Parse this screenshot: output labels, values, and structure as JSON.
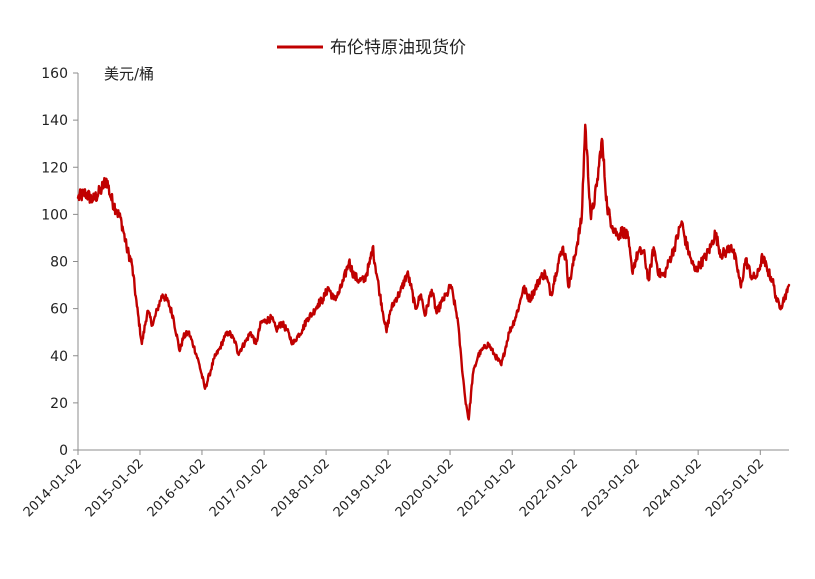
{
  "chart_data": {
    "type": "line",
    "title": "",
    "ylabel": "美元/桶",
    "xlabel": "",
    "ylim": [
      0,
      160
    ],
    "yticks": [
      0,
      20,
      40,
      60,
      80,
      100,
      120,
      140,
      160
    ],
    "xtick_labels": [
      "2014-01-02",
      "2015-01-02",
      "2016-01-02",
      "2017-01-02",
      "2018-01-02",
      "2019-01-02",
      "2020-01-02",
      "2021-01-02",
      "2022-01-02",
      "2023-01-02",
      "2024-01-02",
      "2025-01-02"
    ],
    "xlim": [
      "2014-01-02",
      "2025-06-20"
    ],
    "grid": false,
    "legend_position": "top-center",
    "series": [
      {
        "name": "布伦特原油现货价",
        "color": "#c00000",
        "points": [
          [
            "2014-01-02",
            107
          ],
          [
            "2014-02-15",
            109
          ],
          [
            "2014-03-31",
            106
          ],
          [
            "2014-05-15",
            110
          ],
          [
            "2014-06-19",
            115
          ],
          [
            "2014-07-15",
            107
          ],
          [
            "2014-08-15",
            102
          ],
          [
            "2014-09-15",
            97
          ],
          [
            "2014-10-15",
            86
          ],
          [
            "2014-11-15",
            79
          ],
          [
            "2014-12-15",
            61
          ],
          [
            "2015-01-13",
            45
          ],
          [
            "2015-02-15",
            59
          ],
          [
            "2015-03-18",
            53
          ],
          [
            "2015-04-15",
            60
          ],
          [
            "2015-05-15",
            66
          ],
          [
            "2015-06-15",
            63
          ],
          [
            "2015-07-15",
            57
          ],
          [
            "2015-08-24",
            42
          ],
          [
            "2015-09-15",
            48
          ],
          [
            "2015-10-15",
            50
          ],
          [
            "2015-11-15",
            44
          ],
          [
            "2015-12-15",
            37
          ],
          [
            "2016-01-20",
            26
          ],
          [
            "2016-02-15",
            32
          ],
          [
            "2016-03-15",
            39
          ],
          [
            "2016-04-15",
            43
          ],
          [
            "2016-05-15",
            48
          ],
          [
            "2016-06-08",
            50
          ],
          [
            "2016-07-15",
            46
          ],
          [
            "2016-08-02",
            41
          ],
          [
            "2016-09-15",
            46
          ],
          [
            "2016-10-15",
            50
          ],
          [
            "2016-11-15",
            45
          ],
          [
            "2016-12-15",
            54
          ],
          [
            "2017-01-15",
            55
          ],
          [
            "2017-02-15",
            56
          ],
          [
            "2017-03-15",
            51
          ],
          [
            "2017-04-15",
            54
          ],
          [
            "2017-05-15",
            51
          ],
          [
            "2017-06-21",
            45
          ],
          [
            "2017-07-15",
            48
          ],
          [
            "2017-08-15",
            51
          ],
          [
            "2017-09-15",
            56
          ],
          [
            "2017-10-15",
            58
          ],
          [
            "2017-11-15",
            62
          ],
          [
            "2017-12-15",
            64
          ],
          [
            "2018-01-15",
            69
          ],
          [
            "2018-02-15",
            64
          ],
          [
            "2018-03-15",
            66
          ],
          [
            "2018-04-15",
            72
          ],
          [
            "2018-05-17",
            80
          ],
          [
            "2018-06-15",
            74
          ],
          [
            "2018-07-15",
            72
          ],
          [
            "2018-08-15",
            72
          ],
          [
            "2018-09-15",
            79
          ],
          [
            "2018-10-03",
            86
          ],
          [
            "2018-11-15",
            66
          ],
          [
            "2018-12-24",
            50
          ],
          [
            "2019-01-15",
            59
          ],
          [
            "2019-02-15",
            64
          ],
          [
            "2019-03-15",
            67
          ],
          [
            "2019-04-25",
            75
          ],
          [
            "2019-05-15",
            70
          ],
          [
            "2019-06-12",
            60
          ],
          [
            "2019-07-15",
            66
          ],
          [
            "2019-08-07",
            57
          ],
          [
            "2019-09-16",
            68
          ],
          [
            "2019-10-15",
            58
          ],
          [
            "2019-11-15",
            63
          ],
          [
            "2019-12-15",
            66
          ],
          [
            "2020-01-06",
            70
          ],
          [
            "2020-02-15",
            56
          ],
          [
            "2020-03-10",
            37
          ],
          [
            "2020-03-31",
            22
          ],
          [
            "2020-04-21",
            13
          ],
          [
            "2020-05-15",
            32
          ],
          [
            "2020-06-15",
            40
          ],
          [
            "2020-07-15",
            43
          ],
          [
            "2020-08-15",
            45
          ],
          [
            "2020-09-15",
            41
          ],
          [
            "2020-10-30",
            36
          ],
          [
            "2020-12-15",
            50
          ],
          [
            "2021-01-15",
            55
          ],
          [
            "2021-02-15",
            62
          ],
          [
            "2021-03-08",
            69
          ],
          [
            "2021-04-15",
            64
          ],
          [
            "2021-05-15",
            68
          ],
          [
            "2021-06-15",
            73
          ],
          [
            "2021-07-15",
            75
          ],
          [
            "2021-08-20",
            66
          ],
          [
            "2021-09-15",
            75
          ],
          [
            "2021-10-25",
            86
          ],
          [
            "2021-11-15",
            81
          ],
          [
            "2021-12-01",
            69
          ],
          [
            "2022-01-15",
            86
          ],
          [
            "2022-02-15",
            98
          ],
          [
            "2022-03-08",
            138
          ],
          [
            "2022-04-11",
            98
          ],
          [
            "2022-05-15",
            112
          ],
          [
            "2022-06-14",
            132
          ],
          [
            "2022-07-15",
            103
          ],
          [
            "2022-08-15",
            95
          ],
          [
            "2022-09-15",
            91
          ],
          [
            "2022-10-15",
            93
          ],
          [
            "2022-11-15",
            90
          ],
          [
            "2022-12-09",
            76
          ],
          [
            "2023-01-15",
            84
          ],
          [
            "2023-02-15",
            84
          ],
          [
            "2023-03-17",
            72
          ],
          [
            "2023-04-15",
            86
          ],
          [
            "2023-05-15",
            75
          ],
          [
            "2023-06-15",
            74
          ],
          [
            "2023-07-15",
            80
          ],
          [
            "2023-08-15",
            86
          ],
          [
            "2023-09-27",
            97
          ],
          [
            "2023-10-15",
            90
          ],
          [
            "2023-11-15",
            82
          ],
          [
            "2023-12-15",
            76
          ],
          [
            "2024-01-15",
            79
          ],
          [
            "2024-02-15",
            82
          ],
          [
            "2024-03-15",
            86
          ],
          [
            "2024-04-12",
            92
          ],
          [
            "2024-05-15",
            83
          ],
          [
            "2024-06-15",
            84
          ],
          [
            "2024-07-15",
            87
          ],
          [
            "2024-08-15",
            79
          ],
          [
            "2024-09-10",
            69
          ],
          [
            "2024-10-07",
            81
          ],
          [
            "2024-11-15",
            73
          ],
          [
            "2024-12-15",
            74
          ],
          [
            "2025-01-15",
            82
          ],
          [
            "2025-02-15",
            76
          ],
          [
            "2025-03-15",
            72
          ],
          [
            "2025-04-10",
            63
          ],
          [
            "2025-05-05",
            61
          ],
          [
            "2025-05-25",
            65
          ],
          [
            "2025-06-10",
            67
          ],
          [
            "2025-06-20",
            70
          ]
        ]
      }
    ]
  }
}
